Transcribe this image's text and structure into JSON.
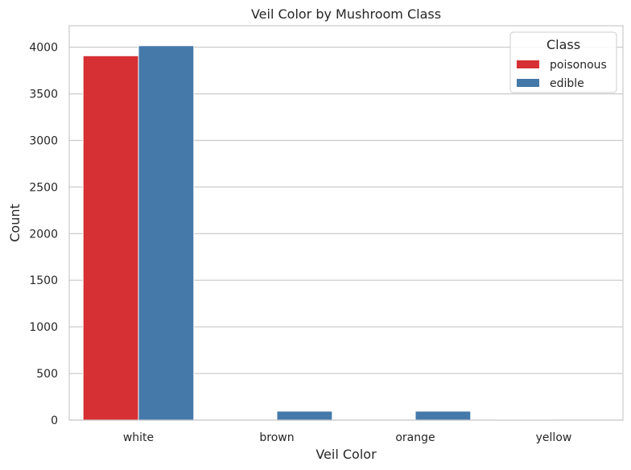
{
  "chart_data": {
    "type": "bar",
    "title": "Veil Color by Mushroom Class",
    "xlabel": "Veil Color",
    "ylabel": "Count",
    "categories": [
      "white",
      "brown",
      "orange",
      "yellow"
    ],
    "series": [
      {
        "name": "poisonous",
        "color": "#d62f34",
        "values": [
          3908,
          0,
          0,
          8
        ]
      },
      {
        "name": "edible",
        "color": "#4479a9",
        "values": [
          4016,
          96,
          96,
          0
        ]
      }
    ],
    "ylim": [
      0,
      4230
    ],
    "yticks": [
      0,
      500,
      1000,
      1500,
      2000,
      2500,
      3000,
      3500,
      4000
    ],
    "grid": "y",
    "legend": {
      "title": "Class",
      "placement": "top-right"
    }
  }
}
